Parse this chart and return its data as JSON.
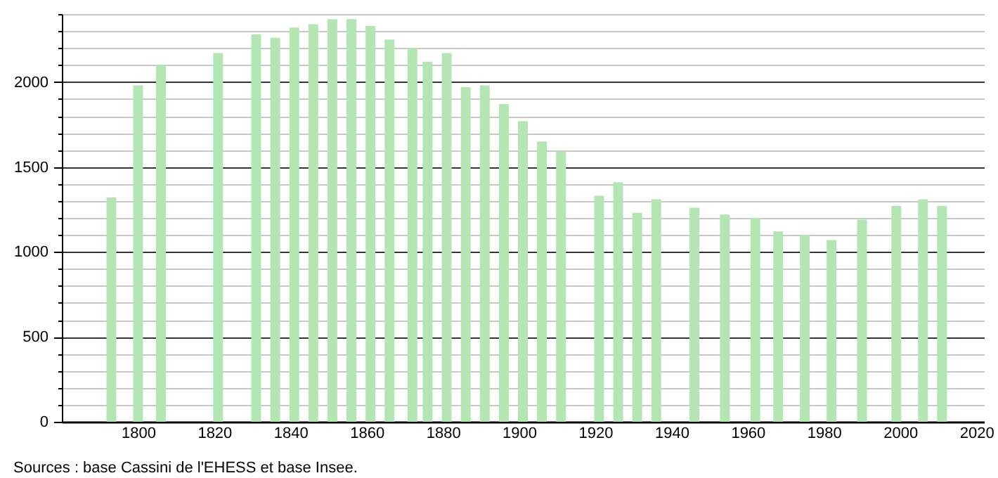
{
  "chart_data": {
    "type": "bar",
    "x": [
      1793,
      1800,
      1806,
      1821,
      1831,
      1836,
      1841,
      1846,
      1851,
      1856,
      1861,
      1866,
      1872,
      1876,
      1881,
      1886,
      1891,
      1896,
      1901,
      1906,
      1911,
      1921,
      1926,
      1931,
      1936,
      1946,
      1954,
      1962,
      1968,
      1975,
      1982,
      1990,
      1999,
      2006,
      2011
    ],
    "values": [
      1320,
      1980,
      2100,
      2170,
      2280,
      2260,
      2320,
      2340,
      2370,
      2370,
      2330,
      2250,
      2200,
      2120,
      2170,
      1970,
      1980,
      1870,
      1770,
      1650,
      1590,
      1330,
      1410,
      1230,
      1310,
      1260,
      1220,
      1200,
      1120,
      1100,
      1070,
      1190,
      1270,
      1310,
      1270
    ],
    "color": "#b3e6b3",
    "xlim": [
      1780,
      2022
    ],
    "xticks": [
      1800,
      1820,
      1840,
      1860,
      1880,
      1900,
      1920,
      1940,
      1960,
      1980,
      2000,
      2020
    ],
    "ylim": [
      0,
      2400
    ],
    "yticks": [
      0,
      {
        "value": 100,
        "label": null
      },
      {
        "value": 200,
        "label": null
      },
      {
        "value": 300,
        "label": null
      },
      {
        "value": 400,
        "label": null
      },
      500,
      {
        "value": 600,
        "label": null
      },
      {
        "value": 700,
        "label": null
      },
      {
        "value": 800,
        "label": null
      },
      {
        "value": 900,
        "label": null
      },
      1000,
      {
        "value": 1100,
        "label": null
      },
      {
        "value": 1200,
        "label": null
      },
      {
        "value": 1300,
        "label": null
      },
      {
        "value": 1400,
        "label": null
      },
      1500,
      {
        "value": 1600,
        "label": null
      },
      {
        "value": 1700,
        "label": null
      },
      {
        "value": 1800,
        "label": null
      },
      {
        "value": 1900,
        "label": null
      },
      2000,
      {
        "value": 2100,
        "label": null
      },
      {
        "value": 2200,
        "label": null
      },
      {
        "value": 2300,
        "label": null
      },
      {
        "value": 2400,
        "label": null
      }
    ],
    "grid": "y",
    "annotations": [
      "Sources : base Cassini de l'EHESS et base Insee."
    ]
  }
}
